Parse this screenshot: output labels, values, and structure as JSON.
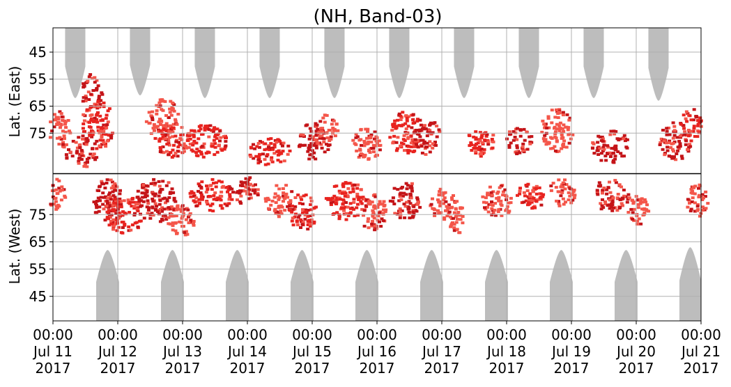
{
  "chart_data": {
    "type": "heatmap",
    "title": "(NH, Band-03)",
    "xlabel": "",
    "ylabel_top": "Lat. (East)",
    "ylabel_bottom": "Lat. (West)",
    "grid": true,
    "x_range_hours": [
      0,
      240
    ],
    "x_ticks": [
      {
        "time": "00:00",
        "date": "Jul 11",
        "year": "2017"
      },
      {
        "time": "00:00",
        "date": "Jul 12",
        "year": "2017"
      },
      {
        "time": "00:00",
        "date": "Jul 13",
        "year": "2017"
      },
      {
        "time": "00:00",
        "date": "Jul 14",
        "year": "2017"
      },
      {
        "time": "00:00",
        "date": "Jul 15",
        "year": "2017"
      },
      {
        "time": "00:00",
        "date": "Jul 16",
        "year": "2017"
      },
      {
        "time": "00:00",
        "date": "Jul 17",
        "year": "2017"
      },
      {
        "time": "00:00",
        "date": "Jul 18",
        "year": "2017"
      },
      {
        "time": "00:00",
        "date": "Jul 19",
        "year": "2017"
      },
      {
        "time": "00:00",
        "date": "Jul 20",
        "year": "2017"
      },
      {
        "time": "00:00",
        "date": "Jul 21",
        "year": "2017"
      }
    ],
    "y_ticks_east": [
      "45",
      "55",
      "65",
      "75"
    ],
    "y_ticks_west": [
      "75",
      "65",
      "55",
      "45"
    ],
    "y_tick_lat_values": [
      45,
      55,
      65,
      75
    ],
    "lat_range": [
      36,
      90
    ],
    "colors": {
      "daylight": "#bdbdbd",
      "activity_strong": "#c41418",
      "activity_medium": "#e8231f",
      "activity_light": "#f4564a",
      "grid": "#b0b0b0",
      "divider": "#000000"
    },
    "daylight_east": [
      {
        "start_hour": 4.5,
        "end_hour": 12.0,
        "min_lat": 62
      },
      {
        "start_hour": 28.5,
        "end_hour": 36.0,
        "min_lat": 61
      },
      {
        "start_hour": 52.5,
        "end_hour": 60.0,
        "min_lat": 62
      },
      {
        "start_hour": 76.5,
        "end_hour": 84.0,
        "min_lat": 62
      },
      {
        "start_hour": 100.5,
        "end_hour": 108.0,
        "min_lat": 62
      },
      {
        "start_hour": 124.5,
        "end_hour": 132.0,
        "min_lat": 62
      },
      {
        "start_hour": 148.5,
        "end_hour": 156.0,
        "min_lat": 62
      },
      {
        "start_hour": 172.5,
        "end_hour": 180.0,
        "min_lat": 62
      },
      {
        "start_hour": 196.5,
        "end_hour": 204.0,
        "min_lat": 62
      },
      {
        "start_hour": 220.5,
        "end_hour": 228.0,
        "min_lat": 63
      }
    ],
    "daylight_west": [
      {
        "start_hour": 16.0,
        "end_hour": 24.5,
        "min_lat": 62
      },
      {
        "start_hour": 40.0,
        "end_hour": 48.5,
        "min_lat": 62
      },
      {
        "start_hour": 64.0,
        "end_hour": 72.5,
        "min_lat": 62
      },
      {
        "start_hour": 88.0,
        "end_hour": 96.5,
        "min_lat": 62
      },
      {
        "start_hour": 112.0,
        "end_hour": 120.5,
        "min_lat": 62
      },
      {
        "start_hour": 136.0,
        "end_hour": 144.5,
        "min_lat": 62
      },
      {
        "start_hour": 160.0,
        "end_hour": 168.5,
        "min_lat": 62
      },
      {
        "start_hour": 184.0,
        "end_hour": 192.5,
        "min_lat": 62
      },
      {
        "start_hour": 208.0,
        "end_hour": 216.5,
        "min_lat": 62
      },
      {
        "start_hour": 232.0,
        "end_hour": 240.0,
        "min_lat": 63
      }
    ],
    "activity_clusters": [
      {
        "side": "east",
        "hour": 2,
        "lat": 74,
        "spread_h": 4,
        "spread_lat": 7,
        "level": "light"
      },
      {
        "side": "west",
        "hour": 1,
        "lat": 82,
        "spread_h": 3,
        "spread_lat": 6,
        "level": "light"
      },
      {
        "side": "east",
        "hour": 14,
        "lat": 60,
        "spread_h": 4,
        "spread_lat": 7,
        "level": "strong"
      },
      {
        "side": "east",
        "hour": 16,
        "lat": 72,
        "spread_h": 6,
        "spread_lat": 9,
        "level": "medium"
      },
      {
        "side": "east",
        "hour": 10,
        "lat": 82,
        "spread_h": 6,
        "spread_lat": 6,
        "level": "strong"
      },
      {
        "side": "west",
        "hour": 20,
        "lat": 80,
        "spread_h": 6,
        "spread_lat": 8,
        "level": "strong"
      },
      {
        "side": "west",
        "hour": 26,
        "lat": 75,
        "spread_h": 7,
        "spread_lat": 7,
        "level": "medium"
      },
      {
        "side": "east",
        "hour": 40,
        "lat": 70,
        "spread_h": 6,
        "spread_lat": 8,
        "level": "light"
      },
      {
        "side": "east",
        "hour": 44,
        "lat": 78,
        "spread_h": 7,
        "spread_lat": 6,
        "level": "medium"
      },
      {
        "side": "west",
        "hour": 38,
        "lat": 80,
        "spread_h": 8,
        "spread_lat": 8,
        "level": "strong"
      },
      {
        "side": "west",
        "hour": 47,
        "lat": 73,
        "spread_h": 5,
        "spread_lat": 6,
        "level": "light"
      },
      {
        "side": "east",
        "hour": 56,
        "lat": 78,
        "spread_h": 8,
        "spread_lat": 6,
        "level": "medium"
      },
      {
        "side": "west",
        "hour": 58,
        "lat": 82,
        "spread_h": 8,
        "spread_lat": 6,
        "level": "medium"
      },
      {
        "side": "west",
        "hour": 70,
        "lat": 84,
        "spread_h": 6,
        "spread_lat": 5,
        "level": "strong"
      },
      {
        "side": "east",
        "hour": 80,
        "lat": 82,
        "spread_h": 8,
        "spread_lat": 5,
        "level": "medium"
      },
      {
        "side": "west",
        "hour": 84,
        "lat": 80,
        "spread_h": 6,
        "spread_lat": 6,
        "level": "light"
      },
      {
        "side": "west",
        "hour": 92,
        "lat": 76,
        "spread_h": 5,
        "spread_lat": 7,
        "level": "medium"
      },
      {
        "side": "east",
        "hour": 96,
        "lat": 78,
        "spread_h": 6,
        "spread_lat": 7,
        "level": "strong"
      },
      {
        "side": "east",
        "hour": 101,
        "lat": 73,
        "spread_h": 4,
        "spread_lat": 5,
        "level": "light"
      },
      {
        "side": "west",
        "hour": 108,
        "lat": 80,
        "spread_h": 8,
        "spread_lat": 7,
        "level": "medium"
      },
      {
        "side": "east",
        "hour": 116,
        "lat": 79,
        "spread_h": 6,
        "spread_lat": 6,
        "level": "light"
      },
      {
        "side": "west",
        "hour": 118,
        "lat": 76,
        "spread_h": 5,
        "spread_lat": 7,
        "level": "light"
      },
      {
        "side": "west",
        "hour": 130,
        "lat": 80,
        "spread_h": 6,
        "spread_lat": 7,
        "level": "strong"
      },
      {
        "side": "east",
        "hour": 130,
        "lat": 75,
        "spread_h": 6,
        "spread_lat": 8,
        "level": "medium"
      },
      {
        "side": "east",
        "hour": 138,
        "lat": 76,
        "spread_h": 5,
        "spread_lat": 7,
        "level": "strong"
      },
      {
        "side": "west",
        "hour": 144,
        "lat": 79,
        "spread_h": 5,
        "spread_lat": 6,
        "level": "light"
      },
      {
        "side": "west",
        "hour": 149,
        "lat": 74,
        "spread_h": 3,
        "spread_lat": 6,
        "level": "light"
      },
      {
        "side": "east",
        "hour": 158,
        "lat": 78,
        "spread_h": 5,
        "spread_lat": 6,
        "level": "medium"
      },
      {
        "side": "west",
        "hour": 164,
        "lat": 80,
        "spread_h": 6,
        "spread_lat": 6,
        "level": "light"
      },
      {
        "side": "east",
        "hour": 172,
        "lat": 78,
        "spread_h": 5,
        "spread_lat": 5,
        "level": "strong"
      },
      {
        "side": "west",
        "hour": 176,
        "lat": 82,
        "spread_h": 6,
        "spread_lat": 5,
        "level": "medium"
      },
      {
        "side": "east",
        "hour": 186,
        "lat": 74,
        "spread_h": 6,
        "spread_lat": 8,
        "level": "light"
      },
      {
        "side": "west",
        "hour": 188,
        "lat": 83,
        "spread_h": 5,
        "spread_lat": 5,
        "level": "light"
      },
      {
        "side": "east",
        "hour": 206,
        "lat": 80,
        "spread_h": 7,
        "spread_lat": 6,
        "level": "strong"
      },
      {
        "side": "west",
        "hour": 206,
        "lat": 82,
        "spread_h": 7,
        "spread_lat": 6,
        "level": "strong"
      },
      {
        "side": "west",
        "hour": 216,
        "lat": 77,
        "spread_h": 4,
        "spread_lat": 6,
        "level": "light"
      },
      {
        "side": "east",
        "hour": 230,
        "lat": 78,
        "spread_h": 6,
        "spread_lat": 7,
        "level": "strong"
      },
      {
        "side": "east",
        "hour": 236,
        "lat": 72,
        "spread_h": 4,
        "spread_lat": 6,
        "level": "medium"
      },
      {
        "side": "west",
        "hour": 238,
        "lat": 80,
        "spread_h": 4,
        "spread_lat": 6,
        "level": "light"
      }
    ]
  }
}
